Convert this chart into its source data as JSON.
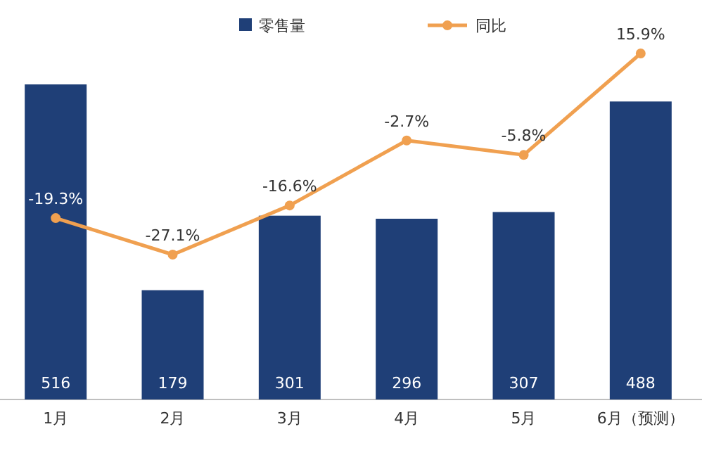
{
  "chart_data": {
    "type": "bar",
    "categories": [
      "1月",
      "2月",
      "3月",
      "4月",
      "5月",
      "6月（预测）"
    ],
    "series": [
      {
        "name": "零售量",
        "color": "#1f3f77",
        "values": [
          516,
          179,
          301,
          296,
          307,
          488
        ]
      },
      {
        "name": "同比",
        "type": "line",
        "axis": "y2",
        "color": "#f0a050",
        "values": [
          -19.3,
          -27.1,
          -16.6,
          -2.7,
          -5.8,
          15.9
        ],
        "value_labels": [
          "-19.3%",
          "-27.1%",
          "-16.6%",
          "-2.7%",
          "-5.8%",
          "15.9%"
        ]
      }
    ],
    "data_labels": true,
    "legend": "top",
    "marker": "circle",
    "line_style": "solid"
  }
}
